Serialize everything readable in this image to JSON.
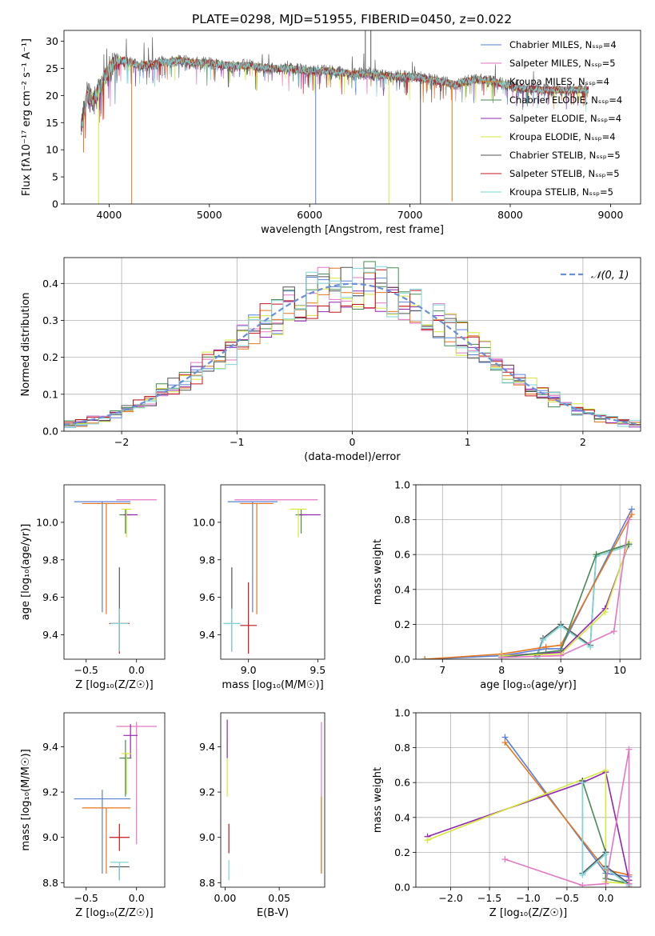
{
  "figure_title": "PLATE=0298, MJD=51955, FIBERID=0450, z=0.022",
  "chart_data": [
    {
      "id": "spectrum",
      "type": "line",
      "xlabel": "wavelength [Angstrom, rest frame]",
      "ylabel": "Flux [fλ10⁻¹⁷ erg cm⁻² s⁻¹ A⁻¹]",
      "xlim": [
        3550,
        9300
      ],
      "ylim": [
        0,
        32
      ],
      "xticks": [
        4000,
        5000,
        6000,
        7000,
        8000,
        9000
      ],
      "yticks": [
        0,
        5,
        10,
        15,
        20,
        25,
        30
      ],
      "grid": false,
      "legend_position": "top-right",
      "spectrum_shape": [
        [
          3720,
          14
        ],
        [
          3780,
          20
        ],
        [
          3850,
          19
        ],
        [
          3920,
          22
        ],
        [
          3980,
          24
        ],
        [
          4050,
          26
        ],
        [
          4150,
          26.5
        ],
        [
          4300,
          25.5
        ],
        [
          4500,
          26
        ],
        [
          4700,
          26.5
        ],
        [
          4850,
          26
        ],
        [
          5000,
          26
        ],
        [
          5200,
          25.5
        ],
        [
          5400,
          25.5
        ],
        [
          5600,
          25
        ],
        [
          5800,
          25
        ],
        [
          6000,
          24.5
        ],
        [
          6200,
          24.5
        ],
        [
          6400,
          24
        ],
        [
          6600,
          24
        ],
        [
          6800,
          23.5
        ],
        [
          7000,
          23.5
        ],
        [
          7200,
          23
        ],
        [
          7450,
          22
        ],
        [
          7650,
          23
        ],
        [
          7850,
          22.5
        ],
        [
          8050,
          21.5
        ],
        [
          8300,
          21
        ],
        [
          8550,
          21
        ],
        [
          8750,
          21
        ]
      ],
      "spikes_down": [
        [
          3745,
          9.5
        ],
        [
          3895,
          0
        ],
        [
          4225,
          0
        ],
        [
          6060,
          0
        ],
        [
          6790,
          0
        ],
        [
          7105,
          0
        ],
        [
          7420,
          0.5
        ]
      ],
      "spikes_up": [
        [
          6555,
          32
        ],
        [
          6610,
          32
        ]
      ],
      "series": [
        {
          "name": "Chabrier MILES, Nₛₛₚ=4",
          "color": "#5b7fd9"
        },
        {
          "name": "Salpeter MILES, Nₛₛₚ=5",
          "color": "#e377c2"
        },
        {
          "name": "Kroupa MILES, Nₛₛₚ=4",
          "color": "#e3761f"
        },
        {
          "name": "Chabrier ELODIE, Nₛₛₚ=4",
          "color": "#4a8a55"
        },
        {
          "name": "Salpeter ELODIE, Nₛₛₚ=4",
          "color": "#9127b0"
        },
        {
          "name": "Kroupa ELODIE, Nₛₛₚ=4",
          "color": "#d6e83a"
        },
        {
          "name": "Chabrier STELIB, Nₛₛₚ=5",
          "color": "#555555"
        },
        {
          "name": "Salpeter STELIB, Nₛₛₚ=5",
          "color": "#c0171c"
        },
        {
          "name": "Kroupa STELIB, Nₛₛₚ=5",
          "color": "#7fd6d8"
        }
      ]
    },
    {
      "id": "residuals",
      "type": "line",
      "xlabel": "(data-model)/error",
      "ylabel": "Normed distribution",
      "xlim": [
        -2.5,
        2.5
      ],
      "ylim": [
        0,
        0.47
      ],
      "xticks": [
        -2,
        -1,
        0,
        1,
        2
      ],
      "yticks": [
        0.0,
        0.1,
        0.2,
        0.3,
        0.4
      ],
      "grid": true,
      "legend_position": "top-right",
      "legend_label": "𝒩(0, 1)",
      "normal_curve": {
        "mean": 0,
        "sigma": 1,
        "color": "#6a8fdb"
      },
      "hist_bins": {
        "start": -2.5,
        "width": 0.1,
        "count": 50
      },
      "hist_series": [
        {
          "color": "#5b7fd9",
          "seed": 11
        },
        {
          "color": "#e377c2",
          "seed": 23
        },
        {
          "color": "#e3761f",
          "seed": 37
        },
        {
          "color": "#4a8a55",
          "seed": 41
        },
        {
          "color": "#9127b0",
          "seed": 53
        },
        {
          "color": "#d6e83a",
          "seed": 67
        },
        {
          "color": "#555555",
          "seed": 79
        },
        {
          "color": "#c0171c",
          "seed": 83
        },
        {
          "color": "#7fd6d8",
          "seed": 97
        }
      ]
    },
    {
      "id": "age-vs-Z",
      "type": "scatter",
      "xlabel": "Z [log₁₀(Z/Z☉)]",
      "ylabel": "age  [log₁₀(age/yr)]",
      "xlim": [
        -0.72,
        0.28
      ],
      "ylim": [
        9.27,
        10.2
      ],
      "xticks": [
        -0.5,
        0.0
      ],
      "yticks": [
        9.4,
        9.6,
        9.8,
        10.0
      ],
      "grid": false,
      "points": [
        {
          "x": -0.34,
          "y": 10.11,
          "xerr": [
            0.28,
            0.28
          ],
          "yerr": [
            0.59,
            0.0
          ],
          "color": "#5b7fd9"
        },
        {
          "x": 0.0,
          "y": 10.12,
          "xerr": [
            0.2,
            0.2
          ],
          "yerr": [
            0.0,
            0.0
          ],
          "color": "#e377c2"
        },
        {
          "x": -0.3,
          "y": 10.1,
          "xerr": [
            0.24,
            0.24
          ],
          "yerr": [
            0.59,
            0.0
          ],
          "color": "#e3761f"
        },
        {
          "x": -0.11,
          "y": 10.04,
          "xerr": [
            0.06,
            0.06
          ],
          "yerr": [
            0.1,
            0.03
          ],
          "color": "#4a8a55"
        },
        {
          "x": -0.06,
          "y": 10.04,
          "xerr": [
            0.07,
            0.07
          ],
          "yerr": [
            0.0,
            0.0
          ],
          "color": "#9127b0"
        },
        {
          "x": -0.1,
          "y": 10.07,
          "xerr": [
            0.05,
            0.05
          ],
          "yerr": [
            0.15,
            0.0
          ],
          "color": "#d6e83a"
        },
        {
          "x": -0.17,
          "y": 9.46,
          "xerr": [
            0.1,
            0.1
          ],
          "yerr": [
            0.15,
            0.3
          ],
          "color": "#555555"
        },
        {
          "x": -0.17,
          "y": 9.46,
          "xerr": [
            0.1,
            0.1
          ],
          "yerr": [
            0.16,
            0.08
          ],
          "color": "#c0171c"
        },
        {
          "x": -0.17,
          "y": 9.46,
          "xerr": [
            0.09,
            0.09
          ],
          "yerr": [
            0.15,
            0.08
          ],
          "color": "#7fd6d8"
        }
      ]
    },
    {
      "id": "age-vs-mass",
      "type": "scatter",
      "xlabel": "mass [log₁₀(M/M☉)]",
      "ylabel": "",
      "xlim": [
        8.8,
        9.55
      ],
      "ylim": [
        9.27,
        10.2
      ],
      "xticks": [
        9.0,
        9.5
      ],
      "yticks": [
        9.4,
        9.6,
        9.8,
        10.0
      ],
      "grid": false,
      "points": [
        {
          "x": 9.03,
          "y": 10.11,
          "xerr": [
            0.18,
            0.18
          ],
          "yerr": [
            0.59,
            0.0
          ],
          "color": "#5b7fd9"
        },
        {
          "x": 9.2,
          "y": 10.12,
          "xerr": [
            0.3,
            0.3
          ],
          "yerr": [
            0.0,
            0.0
          ],
          "color": "#e377c2"
        },
        {
          "x": 9.06,
          "y": 10.1,
          "xerr": [
            0.12,
            0.12
          ],
          "yerr": [
            0.59,
            0.0
          ],
          "color": "#e3761f"
        },
        {
          "x": 9.38,
          "y": 10.04,
          "xerr": [
            0.04,
            0.04
          ],
          "yerr": [
            0.1,
            0.03
          ],
          "color": "#4a8a55"
        },
        {
          "x": 9.44,
          "y": 10.04,
          "xerr": [
            0.08,
            0.08
          ],
          "yerr": [
            0.0,
            0.0
          ],
          "color": "#9127b0"
        },
        {
          "x": 9.36,
          "y": 10.07,
          "xerr": [
            0.06,
            0.06
          ],
          "yerr": [
            0.15,
            0.0
          ],
          "color": "#d6e83a"
        },
        {
          "x": 8.88,
          "y": 9.46,
          "xerr": [
            0.06,
            0.06
          ],
          "yerr": [
            0.15,
            0.3
          ],
          "color": "#555555"
        },
        {
          "x": 9.0,
          "y": 9.45,
          "xerr": [
            0.06,
            0.06
          ],
          "yerr": [
            0.15,
            0.23
          ],
          "color": "#c0171c"
        },
        {
          "x": 8.88,
          "y": 9.46,
          "xerr": [
            0.06,
            0.06
          ],
          "yerr": [
            0.15,
            0.08
          ],
          "color": "#7fd6d8"
        }
      ]
    },
    {
      "id": "weight-vs-age",
      "type": "line",
      "xlabel": "age  [log₁₀(age/yr)]",
      "ylabel": "mass weight",
      "xlim": [
        6.55,
        10.35
      ],
      "ylim": [
        0,
        1.0
      ],
      "xticks": [
        7,
        8,
        9,
        10
      ],
      "yticks": [
        0.0,
        0.2,
        0.4,
        0.6,
        0.8,
        1.0
      ],
      "grid": true,
      "series": [
        {
          "color": "#555555",
          "x": [
            8.6,
            8.7,
            9.0,
            9.5,
            9.6,
            10.15
          ],
          "y": [
            0.02,
            0.12,
            0.2,
            0.08,
            0.6,
            0.66
          ]
        },
        {
          "color": "#7fd6d8",
          "x": [
            8.6,
            8.7,
            9.0,
            9.5,
            9.6,
            10.15
          ],
          "y": [
            0.01,
            0.11,
            0.19,
            0.07,
            0.59,
            0.65
          ]
        },
        {
          "color": "#5b7fd9",
          "x": [
            6.7,
            8.0,
            8.75,
            9.0,
            10.2
          ],
          "y": [
            0.0,
            0.02,
            0.06,
            0.06,
            0.86
          ]
        },
        {
          "color": "#e3761f",
          "x": [
            6.7,
            8.0,
            8.75,
            9.0,
            10.2
          ],
          "y": [
            0.0,
            0.03,
            0.07,
            0.08,
            0.83
          ]
        },
        {
          "color": "#9127b0",
          "x": [
            8.0,
            9.0,
            9.75,
            10.15
          ],
          "y": [
            0.02,
            0.04,
            0.29,
            0.66
          ]
        },
        {
          "color": "#d6e83a",
          "x": [
            8.0,
            9.0,
            9.75,
            10.15
          ],
          "y": [
            0.02,
            0.03,
            0.27,
            0.67
          ]
        },
        {
          "color": "#4a8a55",
          "x": [
            8.0,
            9.0,
            9.6,
            10.15
          ],
          "y": [
            0.01,
            0.05,
            0.6,
            0.66
          ]
        },
        {
          "color": "#e377c2",
          "x": [
            8.0,
            9.0,
            9.9,
            10.15
          ],
          "y": [
            0.01,
            0.02,
            0.16,
            0.8
          ]
        }
      ]
    },
    {
      "id": "mass-vs-Z",
      "type": "scatter",
      "xlabel": "Z [log₁₀(Z/Z☉)]",
      "ylabel": "mass [log₁₀(M/M☉)]",
      "xlim": [
        -0.72,
        0.28
      ],
      "ylim": [
        8.78,
        9.55
      ],
      "xticks": [
        -0.5,
        0.0
      ],
      "yticks": [
        8.8,
        9.0,
        9.2,
        9.4
      ],
      "grid": false,
      "points": [
        {
          "x": -0.34,
          "y": 9.17,
          "xerr": [
            0.28,
            0.28
          ],
          "yerr": [
            0.33,
            0.04
          ],
          "color": "#5b7fd9"
        },
        {
          "x": 0.0,
          "y": 9.49,
          "xerr": [
            0.2,
            0.2
          ],
          "yerr": [
            0.52,
            0.02
          ],
          "color": "#e377c2"
        },
        {
          "x": -0.3,
          "y": 9.13,
          "xerr": [
            0.24,
            0.24
          ],
          "yerr": [
            0.29,
            0.0
          ],
          "color": "#e3761f"
        },
        {
          "x": -0.11,
          "y": 9.35,
          "xerr": [
            0.06,
            0.06
          ],
          "yerr": [
            0.17,
            0.08
          ],
          "color": "#4a8a55"
        },
        {
          "x": -0.06,
          "y": 9.45,
          "xerr": [
            0.07,
            0.07
          ],
          "yerr": [
            0.1,
            0.05
          ],
          "color": "#9127b0"
        },
        {
          "x": -0.1,
          "y": 9.37,
          "xerr": [
            0.05,
            0.05
          ],
          "yerr": [
            0.18,
            0.0
          ],
          "color": "#d6e83a"
        },
        {
          "x": -0.17,
          "y": 8.87,
          "xerr": [
            0.1,
            0.1
          ],
          "yerr": [
            0.06,
            0.0
          ],
          "color": "#555555"
        },
        {
          "x": -0.17,
          "y": 9.0,
          "xerr": [
            0.1,
            0.1
          ],
          "yerr": [
            0.06,
            0.06
          ],
          "color": "#c0171c"
        },
        {
          "x": -0.17,
          "y": 8.89,
          "xerr": [
            0.09,
            0.09
          ],
          "yerr": [
            0.08,
            0.0
          ],
          "color": "#7fd6d8"
        }
      ]
    },
    {
      "id": "mass-vs-ebv",
      "type": "scatter",
      "xlabel": "E(B-V)",
      "ylabel": "",
      "xlim": [
        -0.004,
        0.092
      ],
      "ylim": [
        8.78,
        9.55
      ],
      "xticks": [
        0.0,
        0.05
      ],
      "yticks": [
        8.8,
        9.0,
        9.2,
        9.4
      ],
      "grid": false,
      "points": [
        {
          "x": 0.002,
          "y": 9.43,
          "xerr": [
            0,
            0
          ],
          "yerr": [
            0.25,
            0.0
          ],
          "color": "#d6e83a"
        },
        {
          "x": 0.002,
          "y": 9.45,
          "xerr": [
            0,
            0
          ],
          "yerr": [
            0.1,
            0.07
          ],
          "color": "#9127b0"
        },
        {
          "x": 0.0035,
          "y": 9.0,
          "xerr": [
            0,
            0
          ],
          "yerr": [
            0.07,
            0.06
          ],
          "color": "#c0171c"
        },
        {
          "x": 0.0035,
          "y": 8.9,
          "xerr": [
            0,
            0
          ],
          "yerr": [
            0.09,
            0.0
          ],
          "color": "#7fd6d8"
        },
        {
          "x": 0.089,
          "y": 9.2,
          "xerr": [
            0,
            0
          ],
          "yerr": [
            0.36,
            0.31
          ],
          "color": "#e377c2"
        },
        {
          "x": 0.089,
          "y": 9.0,
          "xerr": [
            0,
            0
          ],
          "yerr": [
            0.16,
            0.18
          ],
          "color": "#e3761f"
        }
      ]
    },
    {
      "id": "weight-vs-Z",
      "type": "line",
      "xlabel": "Z [log₁₀(Z/Z☉)]",
      "ylabel": "mass weight",
      "xlim": [
        -2.45,
        0.45
      ],
      "ylim": [
        0,
        1.0
      ],
      "xticks": [
        -2.0,
        -1.5,
        -1.0,
        -0.5,
        0.0
      ],
      "yticks": [
        0.0,
        0.2,
        0.4,
        0.6,
        0.8,
        1.0
      ],
      "grid": true,
      "series": [
        {
          "color": "#5b7fd9",
          "x": [
            -1.3,
            0.0,
            0.3,
            0.3
          ],
          "y": [
            0.86,
            0.08,
            0.06,
            0.0
          ]
        },
        {
          "color": "#e3761f",
          "x": [
            -1.3,
            0.0,
            0.3,
            0.3
          ],
          "y": [
            0.83,
            0.1,
            0.07,
            0.0
          ]
        },
        {
          "color": "#9127b0",
          "x": [
            -2.3,
            -0.3,
            0.0,
            0.3
          ],
          "y": [
            0.29,
            0.6,
            0.66,
            0.04
          ]
        },
        {
          "color": "#d6e83a",
          "x": [
            -2.3,
            0.0,
            0.0,
            0.3
          ],
          "y": [
            0.27,
            0.67,
            0.03,
            0.02
          ]
        },
        {
          "color": "#4a8a55",
          "x": [
            -0.3,
            0.0,
            0.0,
            0.3
          ],
          "y": [
            0.61,
            0.2,
            0.05,
            0.02
          ]
        },
        {
          "color": "#555555",
          "x": [
            -0.3,
            -0.3,
            0.0,
            0.0,
            0.3
          ],
          "y": [
            0.61,
            0.08,
            0.2,
            0.12,
            0.02
          ]
        },
        {
          "color": "#7fd6d8",
          "x": [
            -0.3,
            -0.3,
            0.0,
            0.0,
            0.3
          ],
          "y": [
            0.6,
            0.07,
            0.19,
            0.11,
            0.01
          ]
        },
        {
          "color": "#e377c2",
          "x": [
            -1.3,
            -0.3,
            0.0,
            0.3,
            0.3
          ],
          "y": [
            0.16,
            0.01,
            0.02,
            0.79,
            0.02
          ]
        }
      ]
    }
  ]
}
